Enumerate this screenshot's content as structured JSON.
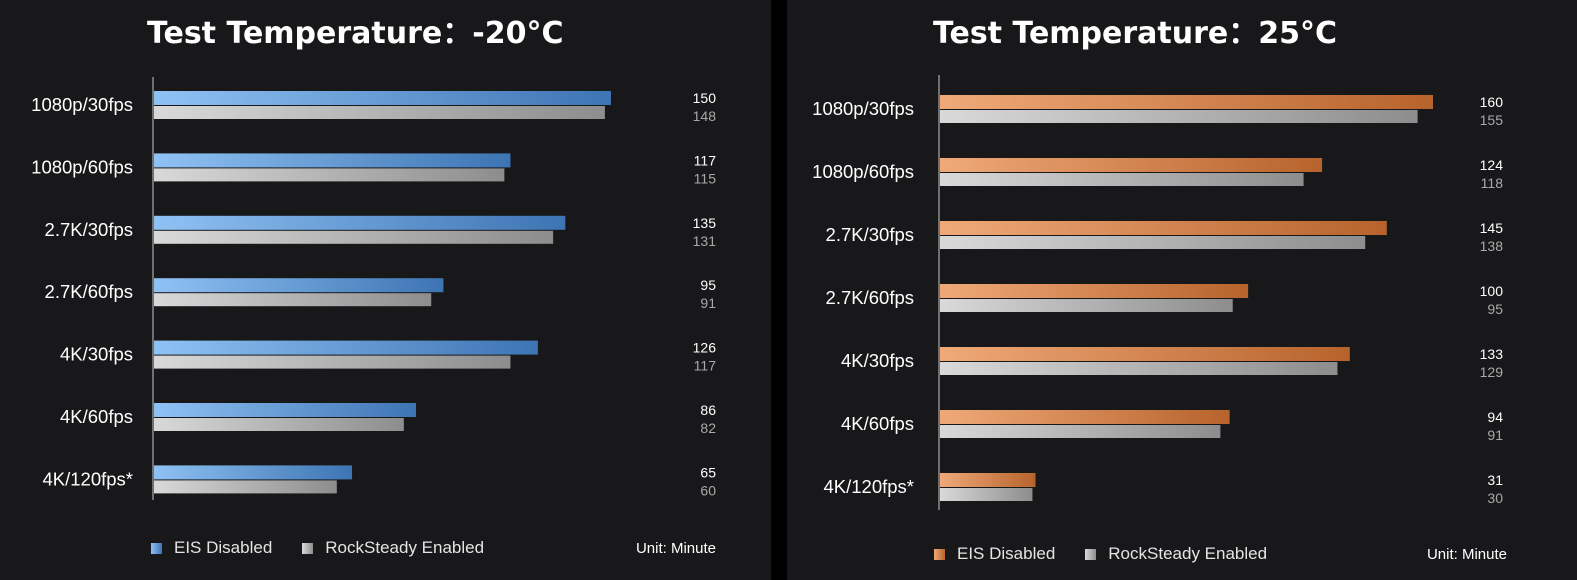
{
  "colors": {
    "background": "#18181a",
    "page": "#000000",
    "label_text": "#ffffff",
    "muted_value_text": "#a9a9a9",
    "eis_blue_light": "#8fc2f4",
    "eis_blue_dark": "#3d74b3",
    "eis_orange_light": "#efa978",
    "eis_orange_dark": "#b7632c",
    "rocksteady_light": "#d9d9d9",
    "rocksteady_dark": "#8d8d8d"
  },
  "chart_data": [
    {
      "type": "bar",
      "orientation": "horizontal",
      "title": "Test Temperature：-20°C",
      "categories": [
        "1080p/30fps",
        "1080p/60fps",
        "2.7K/30fps",
        "2.7K/60fps",
        "4K/30fps",
        "4K/60fps",
        "4K/120fps*"
      ],
      "series": [
        {
          "name": "EIS Disabled",
          "values": [
            150,
            117,
            135,
            95,
            126,
            86,
            65
          ],
          "color": "eis_blue"
        },
        {
          "name": "RockSteady Enabled",
          "values": [
            148,
            115,
            131,
            91,
            117,
            82,
            60
          ],
          "color": "rocksteady"
        }
      ],
      "value_axis_range": [
        0,
        160
      ],
      "grid": false,
      "legend_position": "bottom-left",
      "unit_label": "Unit: Minute"
    },
    {
      "type": "bar",
      "orientation": "horizontal",
      "title": "Test Temperature：25°C",
      "categories": [
        "1080p/30fps",
        "1080p/60fps",
        "2.7K/30fps",
        "2.7K/60fps",
        "4K/30fps",
        "4K/60fps",
        "4K/120fps*"
      ],
      "series": [
        {
          "name": "EIS Disabled",
          "values": [
            160,
            124,
            145,
            100,
            133,
            94,
            31
          ],
          "color": "eis_orange"
        },
        {
          "name": "RockSteady Enabled",
          "values": [
            155,
            118,
            138,
            95,
            129,
            91,
            30
          ],
          "color": "rocksteady"
        }
      ],
      "value_axis_range": [
        0,
        170
      ],
      "grid": false,
      "legend_position": "bottom-left",
      "unit_label": "Unit: Minute"
    }
  ]
}
